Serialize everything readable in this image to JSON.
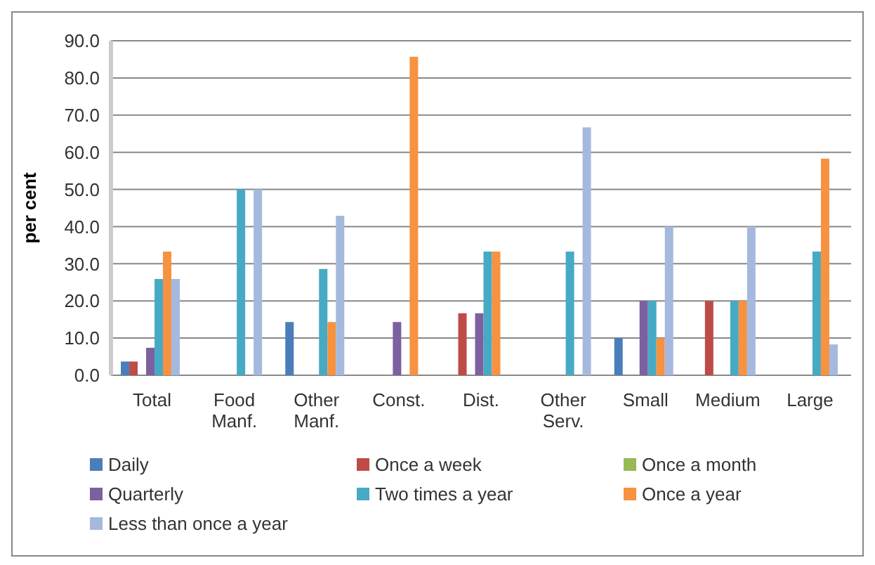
{
  "chart_data": {
    "type": "bar",
    "ylabel": "per cent",
    "categories": [
      "Total",
      "Food Manf.",
      "Other Manf.",
      "Const.",
      "Dist.",
      "Other Serv.",
      "Small",
      "Medium",
      "Large"
    ],
    "series": [
      {
        "name": "Daily",
        "color": "#4a7ebb",
        "values": [
          3.7,
          0,
          14.3,
          0,
          0,
          0,
          10,
          0,
          0
        ]
      },
      {
        "name": "Once a week",
        "color": "#be4b48",
        "values": [
          3.7,
          0,
          0,
          0,
          16.7,
          0,
          0,
          20,
          0
        ]
      },
      {
        "name": "Once a month",
        "color": "#98b954",
        "values": [
          0,
          0,
          0,
          0,
          0,
          0,
          0,
          0,
          0
        ]
      },
      {
        "name": "Quarterly",
        "color": "#7d60a0",
        "values": [
          7.4,
          0,
          0,
          14.3,
          16.7,
          0,
          20,
          0,
          0
        ]
      },
      {
        "name": "Two times a year",
        "color": "#46aac5",
        "values": [
          25.9,
          50,
          28.6,
          0,
          33.3,
          33.3,
          20,
          20,
          33.3
        ]
      },
      {
        "name": "Once a year",
        "color": "#f69240",
        "values": [
          33.3,
          0,
          14.3,
          85.7,
          33.3,
          0,
          10,
          20,
          58.3
        ]
      },
      {
        "name": "Less than once a year",
        "color": "#a5b9de",
        "values": [
          25.9,
          50,
          42.9,
          0,
          0,
          66.7,
          40,
          40,
          8.3
        ]
      }
    ],
    "ylim": [
      0,
      90
    ],
    "yticks": [
      {
        "value": 0,
        "label": "0.0"
      },
      {
        "value": 10,
        "label": "10.0"
      },
      {
        "value": 20,
        "label": "20.0"
      },
      {
        "value": 30,
        "label": "30.0"
      },
      {
        "value": 40,
        "label": "40.0"
      },
      {
        "value": 50,
        "label": "50.0"
      },
      {
        "value": 60,
        "label": "60.0"
      },
      {
        "value": 70,
        "label": "70.0"
      },
      {
        "value": 80,
        "label": "80.0"
      },
      {
        "value": 90,
        "label": "90.0"
      }
    ],
    "grid": "y",
    "legend": "bottom"
  }
}
